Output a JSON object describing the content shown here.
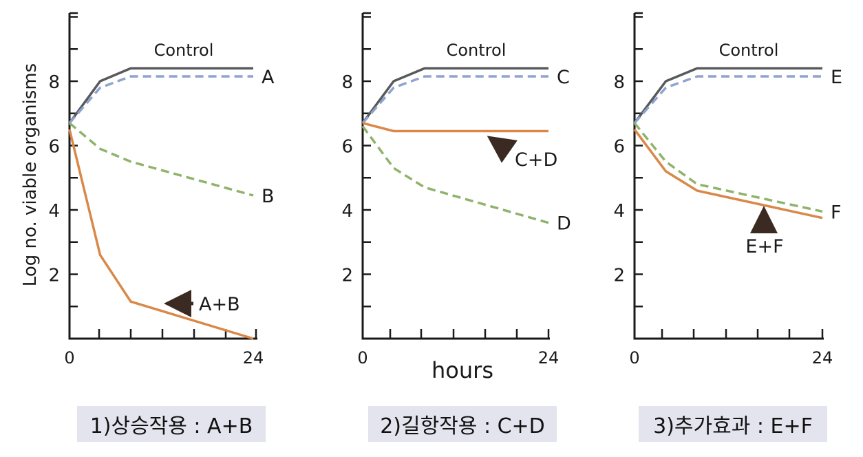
{
  "chart_data": [
    {
      "type": "line",
      "caption": "1)상승작용 : A+B",
      "ylabel": "Log no. viable organisms",
      "xlabel": "",
      "xlim": [
        0,
        24
      ],
      "ylim": [
        0,
        10
      ],
      "xticks": [
        0,
        24
      ],
      "yticks": [
        2,
        4,
        6,
        8
      ],
      "control_label": "Control",
      "series": [
        {
          "name": "Control",
          "style": "solid",
          "color": "#58595b",
          "x": [
            0,
            4,
            8,
            24
          ],
          "y": [
            6.7,
            8.0,
            8.4,
            8.4
          ],
          "label": ""
        },
        {
          "name": "A",
          "style": "dashed",
          "color": "#8ea3cf",
          "x": [
            0,
            4,
            8,
            24
          ],
          "y": [
            6.7,
            7.8,
            8.15,
            8.15
          ],
          "label": "A"
        },
        {
          "name": "B",
          "style": "dashed",
          "color": "#8fb36b",
          "x": [
            0,
            4,
            8,
            24
          ],
          "y": [
            6.7,
            5.9,
            5.5,
            4.45
          ],
          "label": "B"
        },
        {
          "name": "A+B",
          "style": "solid",
          "color": "#d98848",
          "x": [
            0,
            4,
            8,
            24
          ],
          "y": [
            6.5,
            2.6,
            1.15,
            0.0
          ],
          "label": ""
        }
      ],
      "annotation": {
        "text": "A+B",
        "arrow": "left"
      }
    },
    {
      "type": "line",
      "caption": "2)길항작용 : C+D",
      "ylabel": "",
      "xlabel": "hours",
      "xlim": [
        0,
        24
      ],
      "ylim": [
        0,
        10
      ],
      "xticks": [
        0,
        24
      ],
      "yticks": [
        2,
        4,
        6,
        8
      ],
      "control_label": "Control",
      "series": [
        {
          "name": "Control",
          "style": "solid",
          "color": "#58595b",
          "x": [
            0,
            4,
            8,
            24
          ],
          "y": [
            6.7,
            8.0,
            8.4,
            8.4
          ],
          "label": ""
        },
        {
          "name": "C",
          "style": "dashed",
          "color": "#8ea3cf",
          "x": [
            0,
            4,
            8,
            24
          ],
          "y": [
            6.7,
            7.8,
            8.15,
            8.15
          ],
          "label": "C"
        },
        {
          "name": "D",
          "style": "dashed",
          "color": "#8fb36b",
          "x": [
            0,
            4,
            8,
            24
          ],
          "y": [
            6.6,
            5.3,
            4.7,
            3.6
          ],
          "label": "D"
        },
        {
          "name": "C+D",
          "style": "solid",
          "color": "#d98848",
          "x": [
            0,
            4,
            8,
            24
          ],
          "y": [
            6.7,
            6.45,
            6.45,
            6.45
          ],
          "label": ""
        }
      ],
      "annotation": {
        "text": "C+D",
        "arrow": "up-left"
      }
    },
    {
      "type": "line",
      "caption": "3)추가효과 : E+F",
      "ylabel": "",
      "xlabel": "",
      "xlim": [
        0,
        24
      ],
      "ylim": [
        0,
        10
      ],
      "xticks": [
        0,
        24
      ],
      "yticks": [
        2,
        4,
        6,
        8
      ],
      "control_label": "Control",
      "series": [
        {
          "name": "Control",
          "style": "solid",
          "color": "#58595b",
          "x": [
            0,
            4,
            8,
            24
          ],
          "y": [
            6.7,
            8.0,
            8.4,
            8.4
          ],
          "label": ""
        },
        {
          "name": "E",
          "style": "dashed",
          "color": "#8ea3cf",
          "x": [
            0,
            4,
            8,
            24
          ],
          "y": [
            6.7,
            7.8,
            8.15,
            8.15
          ],
          "label": "E"
        },
        {
          "name": "F",
          "style": "dashed",
          "color": "#8fb36b",
          "x": [
            0,
            4,
            8,
            24
          ],
          "y": [
            6.7,
            5.5,
            4.8,
            3.95
          ],
          "label": "F"
        },
        {
          "name": "E+F",
          "style": "solid",
          "color": "#d98848",
          "x": [
            0,
            4,
            8,
            24
          ],
          "y": [
            6.5,
            5.2,
            4.6,
            3.75
          ],
          "label": ""
        }
      ],
      "annotation": {
        "text": "E+F",
        "arrow": "up"
      }
    }
  ]
}
